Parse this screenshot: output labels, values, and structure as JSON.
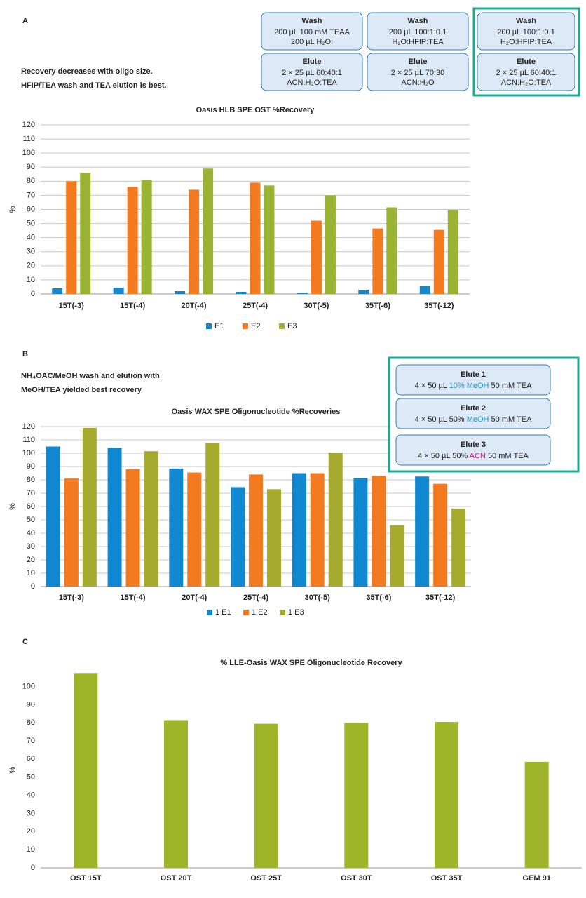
{
  "chart_data": [
    {
      "type": "bar",
      "panel": "A",
      "title": "Oasis HLB SPE OST %Recovery",
      "ylabel": "%",
      "note": [
        "Recovery decreases with oligo size.",
        "HFIP/TEA wash and TEA elution is best."
      ],
      "boxes": [
        {
          "title": "Wash",
          "color": "#1a86c8",
          "lines": [
            "200 µL 100 mM TEAA",
            "200 µL H₂O:"
          ]
        },
        {
          "title": "Wash",
          "color": "#f47a20",
          "lines": [
            "200 µL 100:1:0.1",
            "H₂O:HFIP:TEA"
          ]
        },
        {
          "title": "Wash",
          "color": "#99b433",
          "lines": [
            "200 µL 100:1:0.1",
            "H₂O:HFIP:TEA"
          ]
        },
        {
          "title": "Elute",
          "color": "#1a86c8",
          "lines": [
            "2 × 25 µL 60:40:1",
            "ACN:H₂O:TEA"
          ]
        },
        {
          "title": "Elute",
          "color": "#f47a20",
          "lines": [
            "2 × 25 µL 70:30",
            "ACN:H₂O"
          ]
        },
        {
          "title": "Elute",
          "color": "#99b433",
          "lines": [
            "2 × 25 µL 60:40:1",
            "ACN:H₂O:TEA"
          ]
        }
      ],
      "categories": [
        "15T(-3)",
        "15T(-4)",
        "20T(-4)",
        "25T(-4)",
        "30T(-5)",
        "35T(-6)",
        "35T(-12)"
      ],
      "series": [
        {
          "name": "E1",
          "color": "#1a86c8",
          "values": [
            4,
            4.5,
            2,
            1.5,
            0.8,
            3,
            5.5
          ]
        },
        {
          "name": "E2",
          "color": "#f47a20",
          "values": [
            80,
            76,
            74,
            79,
            52,
            46.5,
            45.5
          ]
        },
        {
          "name": "E3",
          "color": "#99b433",
          "values": [
            86,
            81,
            89,
            77,
            70,
            61.5,
            59.5
          ]
        }
      ],
      "ylim": [
        0,
        120
      ],
      "yticks": [
        0,
        10,
        20,
        30,
        40,
        50,
        60,
        70,
        80,
        90,
        100,
        110,
        120
      ],
      "grid": true,
      "legend": "bottom"
    },
    {
      "type": "bar",
      "panel": "B",
      "title": "Oasis WAX SPE Oligonucleotide %Recoveries",
      "ylabel": "%",
      "note": [
        "NH₄OAC/MeOH wash and elution with",
        "MeOH/TEA yielded best recovery"
      ],
      "boxes": [
        {
          "title": "Elute 1",
          "color": "#2aa84a",
          "parts": [
            {
              "text": "4 × 50 µL ",
              "color": "#222222"
            },
            {
              "text": "10% MeOH",
              "color": "#1a9bd7"
            },
            {
              "text": " 50 mM TEA",
              "color": "#222222"
            }
          ]
        },
        {
          "title": "Elute 2",
          "color": "#2aa84a",
          "parts": [
            {
              "text": "4 × 50 µL 50% ",
              "color": "#222222"
            },
            {
              "text": "MeOH",
              "color": "#1a9bd7"
            },
            {
              "text": " 50 mM TEA",
              "color": "#222222"
            }
          ]
        },
        {
          "title": "Elute 3",
          "color": "#2aa84a",
          "parts": [
            {
              "text": "4 × 50 µL 50% ",
              "color": "#222222"
            },
            {
              "text": "ACN",
              "color": "#c0147a"
            },
            {
              "text": " 50 mM TEA",
              "color": "#222222"
            }
          ]
        }
      ],
      "categories": [
        "15T(-3)",
        "15T(-4)",
        "20T(-4)",
        "25T(-4)",
        "30T(-5)",
        "35T(-6)",
        "35T(-12)"
      ],
      "series": [
        {
          "name": "1 E1",
          "color": "#0f88cf",
          "values": [
            105,
            104,
            88.5,
            74.5,
            85,
            81.5,
            82.5
          ]
        },
        {
          "name": "1 E2",
          "color": "#f47a20",
          "values": [
            81,
            88,
            85.5,
            84,
            85,
            83,
            77
          ]
        },
        {
          "name": "1 E3",
          "color": "#a6ab2e",
          "values": [
            119,
            101.5,
            107.5,
            73,
            100.5,
            46,
            58.5
          ]
        }
      ],
      "ylim": [
        0,
        120
      ],
      "yticks": [
        0,
        10,
        20,
        30,
        40,
        50,
        60,
        70,
        80,
        90,
        100,
        110,
        120
      ],
      "grid": true,
      "legend": "bottom"
    },
    {
      "type": "bar",
      "panel": "C",
      "title": "% LLE-Oasis WAX SPE Oligonucleotide Recovery",
      "ylabel": "%",
      "categories": [
        "OST 15T",
        "OST 20T",
        "OST 25T",
        "OST 30T",
        "OST 35T",
        "GEM 91"
      ],
      "series": [
        {
          "color": "#9fb529",
          "values": [
            107.5,
            81.5,
            79.5,
            80,
            80.5,
            58.5
          ]
        }
      ],
      "ylim": [
        0,
        108
      ],
      "yticks": [
        0,
        10,
        20,
        30,
        40,
        50,
        60,
        70,
        80,
        90,
        100
      ],
      "grid": false
    }
  ]
}
